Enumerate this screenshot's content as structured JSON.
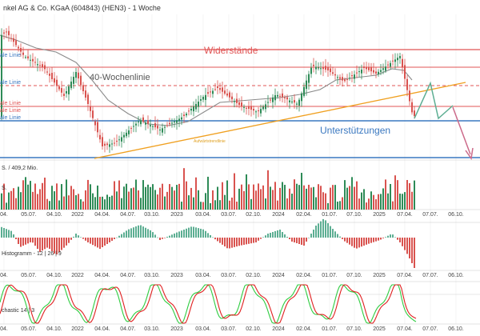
{
  "chart_data": {
    "type": "candlestick",
    "title": "nkel AG & Co. KGaA (604843) (HEN3) - 1 Woche",
    "x": [
      "04.",
      "05.07.",
      "04.10.",
      "2022",
      "04.04.",
      "04.07.",
      "03.10.",
      "2023",
      "03.04.",
      "03.07.",
      "02.10.",
      "2024",
      "02.04.",
      "01.07.",
      "07.10.",
      "2025",
      "07.04.",
      "07.07.",
      "06.10."
    ],
    "price": {
      "overlay": "40-Wochenlinie",
      "trend_line": "Aufwärtstrendlinie",
      "side_lines": [
        "ale Linie",
        "ale Linie",
        "ale Linie",
        "ale Linie",
        "ale Linie"
      ],
      "zone_labels": {
        "resistance": "Widerstände",
        "support": "Unterstützungen"
      },
      "colors": {
        "up": "#2e8b57",
        "down": "#d9534f",
        "ma": "#8a8a8a",
        "trend": "#f0a020",
        "resistance": "#e05555",
        "support": "#3a78c0",
        "forecast_up": "#5cae92",
        "forecast_down": "#cc6a8a"
      }
    },
    "volume_label": "S. / 409,2 Mio.",
    "volume_label2": "S.",
    "macd_label": "Histogramm - 12 | 26 | 9",
    "stoch_label": "chastic 14 | 3",
    "stochastic_colors": {
      "k": "#2ecc40",
      "d": "#e02020"
    }
  }
}
